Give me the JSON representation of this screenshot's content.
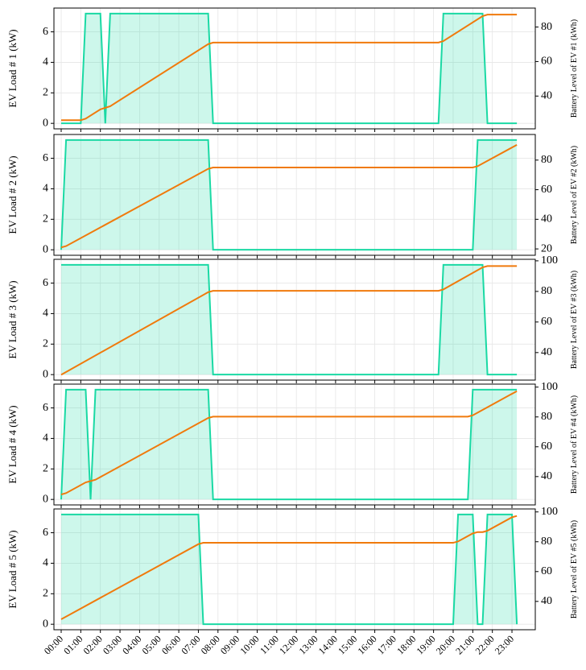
{
  "chart_data": [
    {
      "type": "line",
      "ylabel": "EV Load # 1 (kW)",
      "y2label": "Battery Level of EV #1 (kWh)",
      "x": [
        0,
        1,
        1.25,
        2,
        2.25,
        2.5,
        7.5,
        7.75,
        19.25,
        19.5,
        21.5,
        21.75,
        23.25
      ],
      "xlim": [
        -0.37,
        24.19
      ],
      "xticks": [
        0,
        1,
        2,
        3,
        4,
        5,
        6,
        7,
        8,
        9,
        10,
        11,
        12,
        13,
        14,
        15,
        16,
        17,
        18,
        19,
        20,
        21,
        22,
        23
      ],
      "ylim": [
        -0.36,
        7.56
      ],
      "yticks": [
        0,
        2,
        4,
        6
      ],
      "y2lim": [
        21,
        91
      ],
      "y2ticks": [
        40,
        60,
        80
      ],
      "grid": true,
      "series": [
        {
          "color": "#1ad9a4",
          "fill": true,
          "values": [
            0,
            0,
            7.2,
            7.2,
            0,
            7.2,
            7.2,
            0,
            0,
            7.2,
            7.2,
            0,
            0
          ]
        },
        {
          "color": "#f07a0c",
          "axis": "y2",
          "values": [
            26,
            26,
            26.9,
            32.3,
            33.2,
            34.1,
            70.1,
            71,
            71,
            71.9,
            86.3,
            87.2,
            87.2
          ]
        }
      ]
    },
    {
      "type": "line",
      "ylabel": "EV Load # 2 (kW)",
      "y2label": "Battery Level of EV #2 (kWh)",
      "x": [
        0,
        0.25,
        7.5,
        7.75,
        21,
        21.25,
        23.25
      ],
      "xlim": [
        -0.37,
        24.19
      ],
      "xticks": [
        0,
        1,
        2,
        3,
        4,
        5,
        6,
        7,
        8,
        9,
        10,
        11,
        12,
        13,
        14,
        15,
        16,
        17,
        18,
        19,
        20,
        21,
        22,
        23
      ],
      "ylim": [
        -0.36,
        7.56
      ],
      "yticks": [
        0,
        2,
        4,
        6
      ],
      "y2lim": [
        15.7,
        97.3
      ],
      "y2ticks": [
        20,
        40,
        60,
        80
      ],
      "grid": true,
      "series": [
        {
          "color": "#1ad9a4",
          "fill": true,
          "values": [
            0,
            7.2,
            7.2,
            0,
            0,
            7.2,
            7.2
          ]
        },
        {
          "color": "#f07a0c",
          "axis": "y2",
          "values": [
            21,
            21.9,
            74.1,
            75,
            75,
            75.9,
            90.3
          ]
        }
      ]
    },
    {
      "type": "line",
      "ylabel": "EV Load # 3 (kW)",
      "y2label": "Battery Level of EV #3 (kWh)",
      "x": [
        0,
        7.5,
        7.75,
        19.25,
        19.5,
        21.5,
        21.75,
        23.25
      ],
      "xlim": [
        -0.37,
        24.19
      ],
      "xticks": [
        0,
        1,
        2,
        3,
        4,
        5,
        6,
        7,
        8,
        9,
        10,
        11,
        12,
        13,
        14,
        15,
        16,
        17,
        18,
        19,
        20,
        21,
        22,
        23
      ],
      "ylim": [
        -0.36,
        7.56
      ],
      "yticks": [
        0,
        2,
        4,
        6
      ],
      "y2lim": [
        22,
        101
      ],
      "y2ticks": [
        40,
        60,
        80,
        100
      ],
      "grid": true,
      "series": [
        {
          "color": "#1ad9a4",
          "fill": true,
          "values": [
            7.2,
            7.2,
            0,
            0,
            7.2,
            7.2,
            0,
            0
          ]
        },
        {
          "color": "#f07a0c",
          "axis": "y2",
          "values": [
            25.5,
            79.5,
            80.4,
            80.4,
            81.3,
            95.7,
            96.6,
            96.6
          ]
        }
      ]
    },
    {
      "type": "line",
      "ylabel": "EV Load # 4 (kW)",
      "y2label": "Battery Level of EV #4 (kWh)",
      "x": [
        0,
        0.25,
        1.25,
        1.5,
        1.75,
        7.5,
        7.75,
        20.75,
        21,
        23.25
      ],
      "xlim": [
        -0.37,
        24.19
      ],
      "xticks": [
        0,
        1,
        2,
        3,
        4,
        5,
        6,
        7,
        8,
        9,
        10,
        11,
        12,
        13,
        14,
        15,
        16,
        17,
        18,
        19,
        20,
        21,
        22,
        23
      ],
      "ylim": [
        -0.36,
        7.56
      ],
      "yticks": [
        0,
        2,
        4,
        6
      ],
      "y2lim": [
        21,
        102
      ],
      "y2ticks": [
        40,
        60,
        80,
        100
      ],
      "grid": true,
      "series": [
        {
          "color": "#1ad9a4",
          "fill": true,
          "values": [
            0,
            7.2,
            7.2,
            0,
            7.2,
            7.2,
            0,
            0,
            7.2,
            7.2
          ]
        },
        {
          "color": "#f07a0c",
          "axis": "y2",
          "values": [
            28,
            28.9,
            36.1,
            37,
            37.9,
            79.3,
            80.2,
            80.2,
            81.1,
            97.3
          ]
        }
      ]
    },
    {
      "type": "line",
      "ylabel": "EV Load # 5 (kW)",
      "y2label": "Battery Level of EV #5 (kWh)",
      "x": [
        0,
        7,
        7.25,
        20,
        20.25,
        21,
        21.25,
        21.5,
        21.75,
        23,
        23.25
      ],
      "xlim": [
        -0.37,
        24.19
      ],
      "xticks": [
        {
          "value": 0,
          "label": "00:00"
        },
        {
          "value": 1,
          "label": "01:00"
        },
        {
          "value": 2,
          "label": "02:00"
        },
        {
          "value": 3,
          "label": "03:00"
        },
        {
          "value": 4,
          "label": "04:00"
        },
        {
          "value": 5,
          "label": "05:00"
        },
        {
          "value": 6,
          "label": "06:00"
        },
        {
          "value": 7,
          "label": "07:00"
        },
        {
          "value": 8,
          "label": "08:00"
        },
        {
          "value": 9,
          "label": "09:00"
        },
        {
          "value": 10,
          "label": "10:00"
        },
        {
          "value": 11,
          "label": "11:00"
        },
        {
          "value": 12,
          "label": "12:00"
        },
        {
          "value": 13,
          "label": "13:00"
        },
        {
          "value": 14,
          "label": "14:00"
        },
        {
          "value": 15,
          "label": "15:00"
        },
        {
          "value": 16,
          "label": "16:00"
        },
        {
          "value": 17,
          "label": "17:00"
        },
        {
          "value": 18,
          "label": "18:00"
        },
        {
          "value": 19,
          "label": "19:00"
        },
        {
          "value": 20,
          "label": "20:00"
        },
        {
          "value": 21,
          "label": "21:00"
        },
        {
          "value": 22,
          "label": "22:00"
        },
        {
          "value": 23,
          "label": "23:00"
        }
      ],
      "ylim": [
        -0.36,
        7.56
      ],
      "yticks": [
        0,
        2,
        4,
        6
      ],
      "y2lim": [
        21,
        102
      ],
      "y2ticks": [
        40,
        60,
        80,
        100
      ],
      "grid": true,
      "series": [
        {
          "color": "#1ad9a4",
          "fill": true,
          "values": [
            7.2,
            7.2,
            0,
            0,
            7.2,
            7.2,
            0,
            0,
            7.2,
            7.2,
            0
          ]
        },
        {
          "color": "#f07a0c",
          "axis": "y2",
          "values": [
            28,
            78.4,
            79.3,
            79.3,
            80.2,
            85.6,
            86.5,
            86.5,
            87.4,
            96.4,
            97.3
          ]
        }
      ]
    }
  ]
}
